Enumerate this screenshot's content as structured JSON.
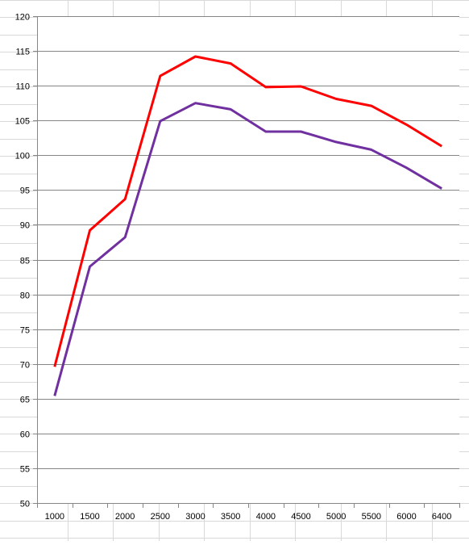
{
  "chart_data": {
    "type": "line",
    "categories": [
      "1000",
      "1500",
      "2000",
      "2500",
      "3000",
      "3500",
      "4000",
      "4500",
      "5000",
      "5500",
      "6000",
      "6400"
    ],
    "ylim": [
      50,
      120
    ],
    "yticks": [
      "50",
      "55",
      "60",
      "65",
      "70",
      "75",
      "80",
      "85",
      "90",
      "95",
      "100",
      "105",
      "110",
      "115",
      "120"
    ],
    "grid": true,
    "legend": "none",
    "series": [
      {
        "color": "#ff0000",
        "values": [
          69.6,
          89.2,
          93.7,
          111.4,
          114.2,
          113.2,
          109.8,
          109.9,
          108.1,
          107.1,
          104.4,
          101.3
        ]
      },
      {
        "color": "#7030a0",
        "values": [
          65.4,
          84.0,
          88.2,
          104.9,
          107.5,
          106.6,
          103.4,
          103.4,
          101.9,
          100.8,
          98.2,
          95.2
        ]
      }
    ],
    "colors": {
      "grid": "#868686",
      "axis": "#868686",
      "sheet_grid": "#d9d9d9"
    }
  }
}
